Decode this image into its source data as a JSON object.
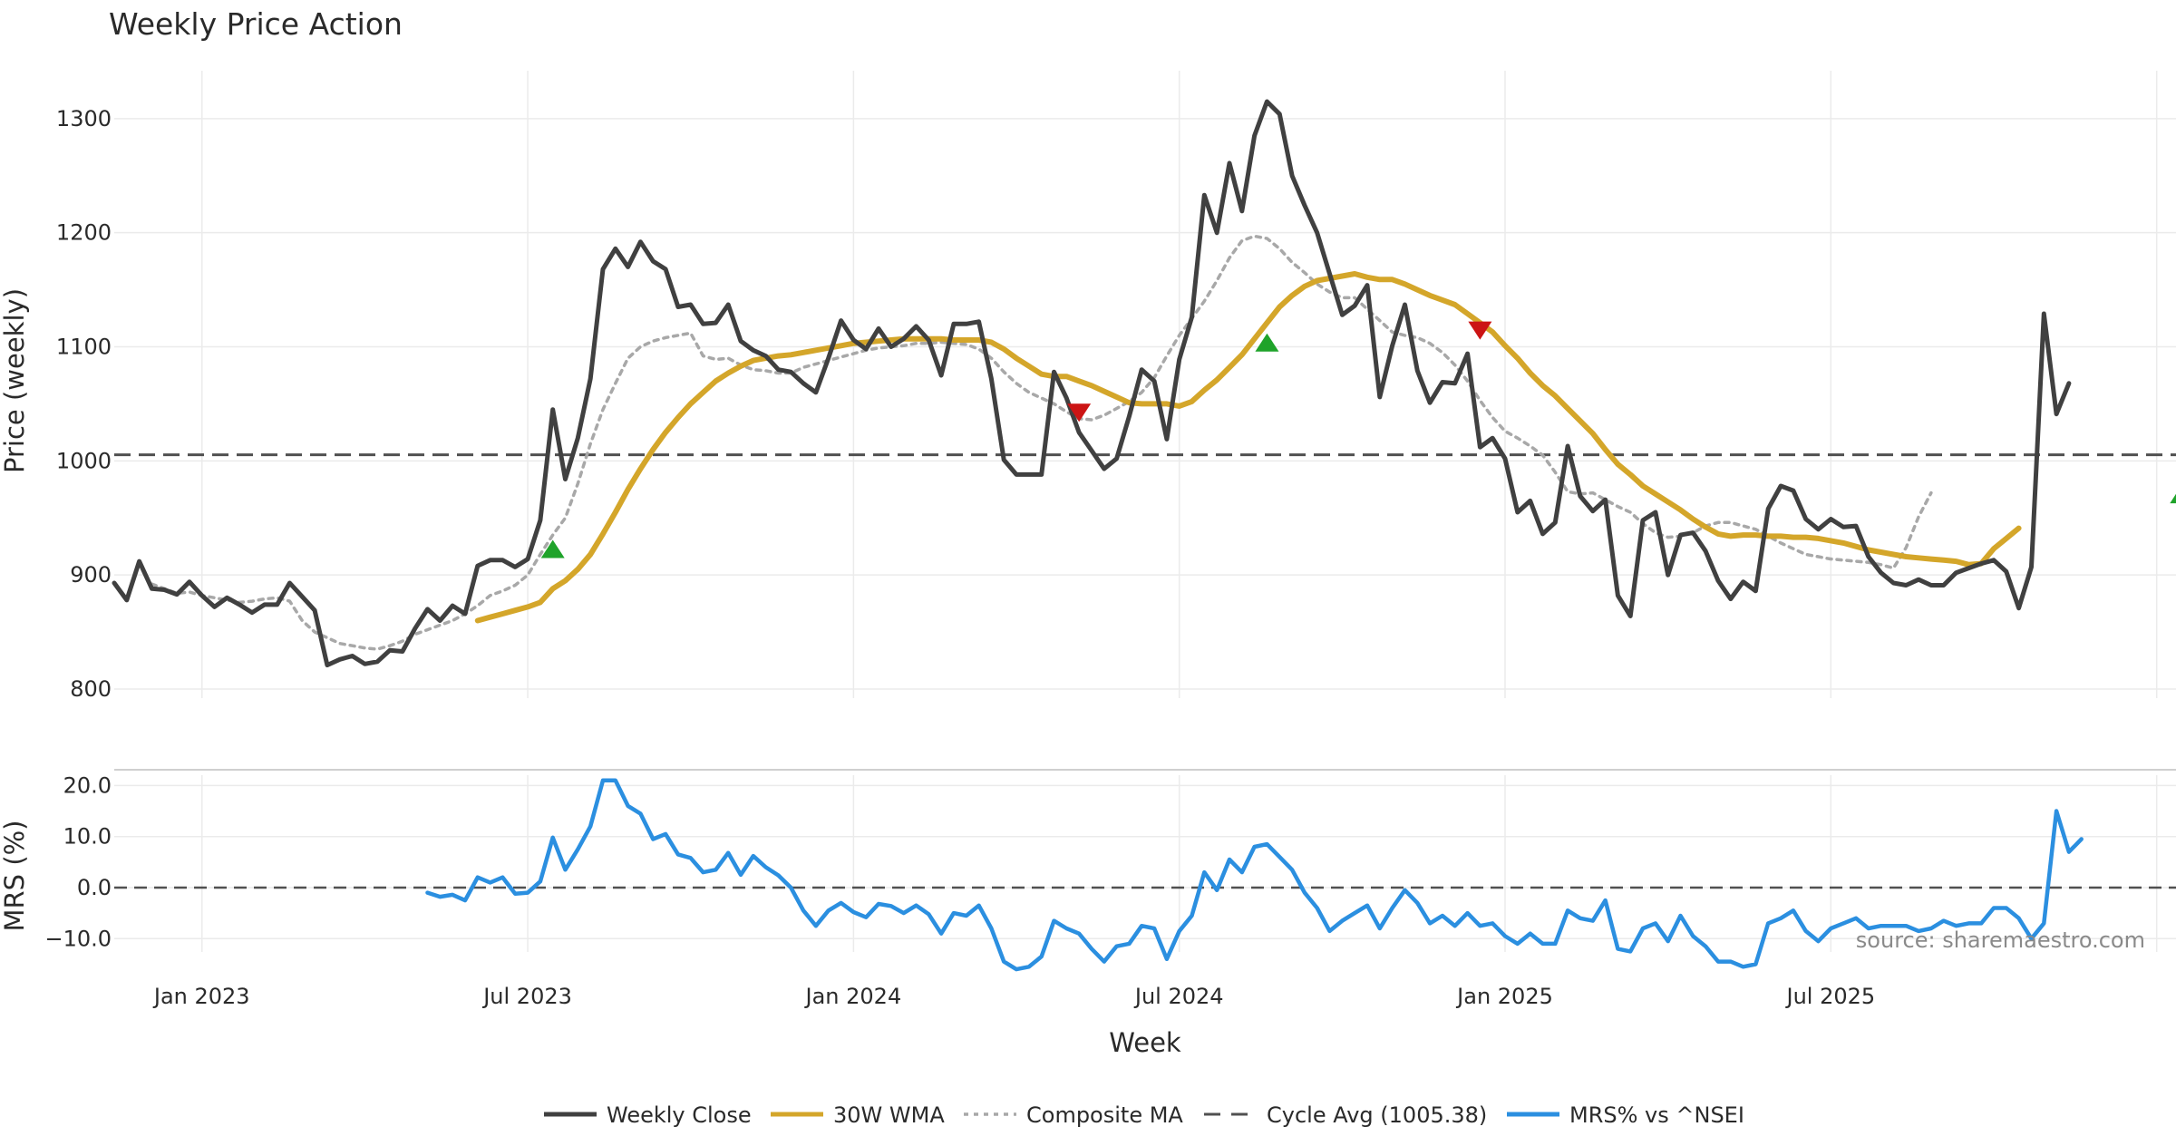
{
  "chart_data": [
    {
      "type": "line",
      "title": "Weekly Price Action",
      "xlabel": "",
      "ylabel": "Price (weekly)",
      "ylim": [
        800,
        1340
      ],
      "yticks": [
        800,
        900,
        1000,
        1100,
        1200,
        1300
      ],
      "grid": true,
      "cycle_avg": 1005.38,
      "cycle_avg_label": "Cycle Avg (1005.38)",
      "series": [
        {
          "name": "Weekly Close",
          "color": "#404040",
          "start_week": 0,
          "values": [
            893,
            878,
            912,
            888,
            887,
            883,
            894,
            882,
            872,
            880,
            874,
            867,
            874,
            874,
            893,
            881,
            869,
            821,
            826,
            829,
            822,
            824,
            834,
            833,
            853,
            870,
            860,
            873,
            866,
            908,
            913,
            913,
            907,
            914,
            948,
            1045,
            984,
            1020,
            1072,
            1168,
            1186,
            1170,
            1192,
            1175,
            1168,
            1135,
            1137,
            1120,
            1121,
            1137,
            1105,
            1097,
            1092,
            1080,
            1078,
            1068,
            1060,
            1090,
            1123,
            1106,
            1098,
            1116,
            1100,
            1107,
            1118,
            1106,
            1075,
            1120,
            1120,
            1122,
            1072,
            1001,
            988,
            988,
            988,
            1078,
            1055,
            1025,
            1009,
            993,
            1002,
            1039,
            1080,
            1070,
            1019,
            1089,
            1126,
            1233,
            1200,
            1261,
            1219,
            1285,
            1315,
            1304,
            1250,
            1224,
            1200,
            1164,
            1128,
            1136,
            1154,
            1056,
            1101,
            1137,
            1079,
            1051,
            1069,
            1068,
            1094,
            1012,
            1020,
            1002,
            955,
            965,
            936,
            946,
            1013,
            969,
            956,
            966,
            882,
            864,
            948,
            955,
            900,
            935,
            937,
            921,
            895,
            879,
            894,
            886,
            958,
            978,
            974,
            949,
            940,
            949,
            942,
            943,
            916,
            902,
            893,
            891,
            896,
            891,
            891,
            902,
            906,
            910,
            913,
            903,
            871,
            907,
            1129,
            1041,
            1068
          ]
        },
        {
          "name": "30W WMA",
          "color": "#d4a62a",
          "start_week": 29,
          "values": [
            860,
            863,
            866,
            869,
            872,
            876,
            888,
            895,
            905,
            918,
            936,
            955,
            975,
            993,
            1010,
            1025,
            1038,
            1050,
            1060,
            1070,
            1077,
            1083,
            1088,
            1090,
            1092,
            1093,
            1095,
            1097,
            1099,
            1101,
            1103,
            1104,
            1105,
            1106,
            1107,
            1107,
            1107,
            1107,
            1106,
            1106,
            1106,
            1104,
            1098,
            1090,
            1083,
            1076,
            1074,
            1074,
            1070,
            1066,
            1061,
            1056,
            1051,
            1050,
            1050,
            1050,
            1048,
            1052,
            1062,
            1071,
            1082,
            1093,
            1107,
            1121,
            1135,
            1145,
            1153,
            1158,
            1160,
            1162,
            1164,
            1161,
            1159,
            1159,
            1155,
            1150,
            1145,
            1141,
            1137,
            1129,
            1121,
            1113,
            1101,
            1090,
            1077,
            1066,
            1057,
            1046,
            1035,
            1024,
            1010,
            997,
            988,
            978,
            971,
            964,
            957,
            949,
            942,
            936,
            934,
            935,
            935,
            934,
            934,
            933,
            933,
            932,
            930,
            928,
            925,
            922,
            920,
            918,
            916,
            915,
            914,
            913,
            912,
            909,
            910,
            923,
            932,
            941
          ]
        },
        {
          "name": "Composite MA",
          "color": "#a8a8a8",
          "start_week": 3,
          "values": [
            892,
            888,
            884,
            885,
            882,
            880,
            878,
            876,
            877,
            879,
            880,
            877,
            860,
            850,
            845,
            840,
            838,
            836,
            835,
            838,
            842,
            848,
            852,
            856,
            860,
            866,
            873,
            882,
            886,
            891,
            900,
            918,
            935,
            950,
            980,
            1015,
            1045,
            1068,
            1090,
            1100,
            1105,
            1108,
            1110,
            1112,
            1092,
            1089,
            1090,
            1084,
            1080,
            1079,
            1077,
            1077,
            1082,
            1085,
            1088,
            1091,
            1094,
            1097,
            1099,
            1100,
            1101,
            1103,
            1103,
            1104,
            1103,
            1102,
            1098,
            1090,
            1078,
            1068,
            1060,
            1055,
            1050,
            1043,
            1037,
            1036,
            1040,
            1046,
            1052,
            1060,
            1073,
            1092,
            1110,
            1125,
            1140,
            1158,
            1178,
            1193,
            1197,
            1195,
            1186,
            1174,
            1165,
            1155,
            1148,
            1143,
            1143,
            1133,
            1123,
            1113,
            1110,
            1108,
            1103,
            1095,
            1084,
            1070,
            1053,
            1038,
            1026,
            1020,
            1013,
            1005,
            990,
            973,
            971,
            972,
            966,
            960,
            955,
            945,
            937,
            933,
            934,
            937,
            943,
            946,
            946,
            943,
            940,
            934,
            928,
            923,
            918,
            916,
            914,
            913,
            912,
            911,
            909,
            906,
            924,
            951,
            972
          ]
        },
        {
          "name": "MRS% vs ^NSEI",
          "color": "#2b8fe0",
          "start_week": 25,
          "values": [
            -1,
            -1.8,
            -1.4,
            -2.5,
            2,
            1,
            2,
            -1.2,
            -1,
            1.2,
            9.8,
            3.5,
            7.5,
            12,
            21,
            21,
            16,
            14.5,
            9.5,
            10.5,
            6.5,
            5.8,
            3,
            3.5,
            6.8,
            2.5,
            6.2,
            4,
            2.4,
            0,
            -4.5,
            -7.5,
            -4.5,
            -3,
            -4.8,
            -5.8,
            -3.2,
            -3.6,
            -5,
            -3.5,
            -5.2,
            -9,
            -5,
            -5.5,
            -3.5,
            -8,
            -14.5,
            -16,
            -15.5,
            -13.5,
            -6.5,
            -8,
            -9,
            -12,
            -14.5,
            -11.5,
            -11,
            -7.5,
            -8,
            -14,
            -8.5,
            -5.5,
            3,
            -0.5,
            5.5,
            3,
            8,
            8.5,
            6,
            3.5,
            -1,
            -4,
            -8.5,
            -6.5,
            -5,
            -3.5,
            -8,
            -4,
            -0.5,
            -3,
            -7,
            -5.5,
            -7.5,
            -5,
            -7.5,
            -7,
            -9.5,
            -11,
            -9,
            -11,
            -11,
            -4.5,
            -6,
            -6.5,
            -2.5,
            -12,
            -12.5,
            -8,
            -7,
            -10.5,
            -5.5,
            -9.5,
            -11.5,
            -14.5,
            -14.5,
            -15.5,
            -15,
            -7,
            -6,
            -4.5,
            -8.5,
            -10.5,
            -8,
            -7,
            -6,
            -8,
            -7.5,
            -7.5,
            -7.5,
            -8.5,
            -8,
            -6.5,
            -7.5,
            -7,
            -7,
            -4,
            -4,
            -6,
            -10,
            -7,
            15,
            7,
            9.5
          ]
        }
      ],
      "signals": [
        {
          "type": "buy",
          "week": 35,
          "value": 922,
          "color": "#1fa32a"
        },
        {
          "type": "sell",
          "week": 77,
          "value": 1043,
          "color": "#cc1414"
        },
        {
          "type": "buy",
          "week": 92,
          "value": 1103,
          "color": "#1fa32a"
        },
        {
          "type": "sell",
          "week": 109,
          "value": 1115,
          "color": "#cc1414"
        },
        {
          "type": "buy",
          "week": 165,
          "value": 970,
          "color": "#1fa32a"
        }
      ]
    },
    {
      "type": "line",
      "title": "",
      "xlabel": "Week",
      "ylabel": "MRS (%)",
      "ylim": [
        -17,
        22
      ],
      "yticks": [
        "-10.0",
        "0.0",
        "10.0",
        "20.0"
      ],
      "x_tick_labels": [
        "Jan 2023",
        "Jul 2023",
        "Jan 2024",
        "Jul 2024",
        "Jan 2025",
        "Jul 2025"
      ],
      "x_tick_weeks": [
        7,
        33,
        59,
        85,
        111,
        137
      ],
      "zero_line": 0,
      "source_label": "source: sharemaestro.com"
    }
  ],
  "legend": [
    {
      "label": "Weekly Close",
      "color": "#404040",
      "style": "solid"
    },
    {
      "label": "30W WMA",
      "color": "#d4a62a",
      "style": "solid"
    },
    {
      "label": "Composite MA",
      "color": "#a8a8a8",
      "style": "dotted"
    },
    {
      "label": "Cycle Avg (1005.38)",
      "color": "#505050",
      "style": "dashed"
    },
    {
      "label": "MRS% vs ^NSEI",
      "color": "#2b8fe0",
      "style": "solid"
    }
  ]
}
